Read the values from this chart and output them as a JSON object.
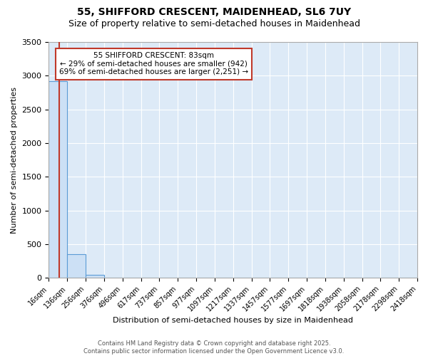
{
  "title": "55, SHIFFORD CRESCENT, MAIDENHEAD, SL6 7UY",
  "subtitle": "Size of property relative to semi-detached houses in Maidenhead",
  "xlabel": "Distribution of semi-detached houses by size in Maidenhead",
  "ylabel": "Number of semi-detached properties",
  "bin_edges": [
    16,
    136,
    256,
    376,
    496,
    617,
    737,
    857,
    977,
    1097,
    1217,
    1337,
    1457,
    1577,
    1697,
    1818,
    1938,
    2058,
    2178,
    2298,
    2418
  ],
  "counts": [
    2920,
    355,
    50,
    0,
    0,
    0,
    0,
    0,
    0,
    0,
    0,
    0,
    0,
    0,
    0,
    0,
    0,
    0,
    0,
    0
  ],
  "property_size": 83,
  "ylim": [
    0,
    3500
  ],
  "bar_color": "#cce0f5",
  "bar_edge_color": "#5b9bd5",
  "vline_color": "#c0392b",
  "annotation_text": "55 SHIFFORD CRESCENT: 83sqm\n← 29% of semi-detached houses are smaller (942)\n69% of semi-detached houses are larger (2,251) →",
  "annotation_box_color": "#ffffff",
  "annotation_box_edge": "#c0392b",
  "footer_text": "Contains HM Land Registry data © Crown copyright and database right 2025.\nContains public sector information licensed under the Open Government Licence v3.0.",
  "title_fontsize": 10,
  "subtitle_fontsize": 9,
  "tick_label_fontsize": 7,
  "ylabel_fontsize": 8,
  "xlabel_fontsize": 8,
  "fig_bg_color": "#ffffff",
  "plot_bg_color": "#ddeaf7"
}
